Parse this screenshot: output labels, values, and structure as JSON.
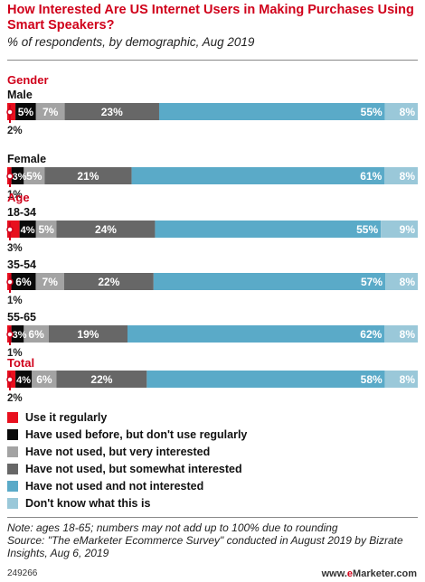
{
  "title": "How Interested Are US Internet Users in Making Purchases Using Smart Speakers?",
  "subtitle": "% of respondents, by demographic, Aug 2019",
  "colors": {
    "title": "#d0021b",
    "series": [
      "#e8101e",
      "#0a0a0a",
      "#a3a3a3",
      "#676767",
      "#5aaac8",
      "#9ac8d9"
    ]
  },
  "chart_data": {
    "type": "bar",
    "orientation": "horizontal",
    "stacked": true,
    "series": [
      {
        "name": "Use it regularly"
      },
      {
        "name": "Have used before, but don't use regularly"
      },
      {
        "name": "Have not used, but very interested"
      },
      {
        "name": "Have not used, but somewhat interested"
      },
      {
        "name": "Have not used and not interested"
      },
      {
        "name": "Don't know what this is"
      }
    ],
    "groups": [
      {
        "label": "Gender",
        "rows": [
          {
            "label": "Male",
            "values": [
              2,
              5,
              7,
              23,
              55,
              8
            ]
          },
          {
            "label": "Female",
            "values": [
              1,
              3,
              5,
              21,
              61,
              8
            ]
          }
        ]
      },
      {
        "label": "Age",
        "rows": [
          {
            "label": "18-34",
            "values": [
              3,
              4,
              5,
              24,
              55,
              9
            ]
          },
          {
            "label": "35-54",
            "values": [
              1,
              6,
              7,
              22,
              57,
              8
            ]
          },
          {
            "label": "55-65",
            "values": [
              1,
              3,
              6,
              19,
              62,
              8
            ]
          }
        ]
      },
      {
        "label": "Total",
        "rows": [
          {
            "label": "",
            "values": [
              2,
              4,
              6,
              22,
              58,
              8
            ]
          }
        ]
      }
    ]
  },
  "notes": [
    "Note: ages 18-65; numbers may not add up to 100% due to rounding",
    "Source: \"The eMarketer Ecommerce Survey\" conducted in August 2019 by Bizrate Insights, Aug 6, 2019"
  ],
  "footer": {
    "id": "249266",
    "brand_prefix": "www.",
    "brand_e": "e",
    "brand_rest": "Marketer",
    "brand_suffix": ".com"
  }
}
